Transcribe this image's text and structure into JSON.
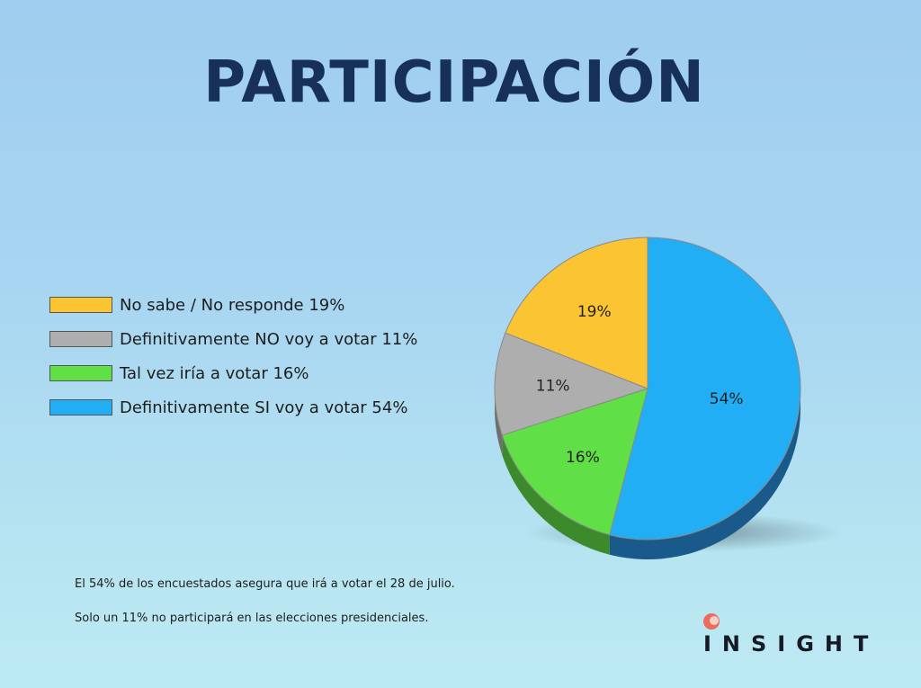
{
  "title": "PARTICIPACIÓN",
  "chart_data": {
    "type": "pie",
    "title": "PARTICIPACIÓN",
    "slices": [
      {
        "name": "Definitivamente SI voy a votar",
        "value": 54,
        "label": "54%",
        "color": "#22aef5",
        "side": "#1a5a8a"
      },
      {
        "name": "Tal vez iría a votar",
        "value": 16,
        "label": "16%",
        "color": "#60e046",
        "side": "#3c8a2c"
      },
      {
        "name": "Definitivamente NO voy a votar",
        "value": 11,
        "label": "11%",
        "color": "#aeaeae",
        "side": "#6f6f6f"
      },
      {
        "name": "No sabe / No responde",
        "value": 19,
        "label": "19%",
        "color": "#fbc433",
        "side": "#b28a1e"
      }
    ]
  },
  "legend": [
    {
      "text": "No sabe / No responde 19%",
      "color": "#fbc433"
    },
    {
      "text": "Definitivamente NO voy a votar 11%",
      "color": "#aeaeae"
    },
    {
      "text": "Tal vez iría a votar 16%",
      "color": "#60e046"
    },
    {
      "text": "Definitivamente SI voy a votar 54%",
      "color": "#22aef5"
    }
  ],
  "notes": [
    "El 54% de los encuestados asegura que irá a votar el 28 de julio.",
    "Solo un 11% no participará en las elecciones presidenciales."
  ],
  "logo": {
    "text": "INSIGHT",
    "accent": "#ec6b5a"
  }
}
